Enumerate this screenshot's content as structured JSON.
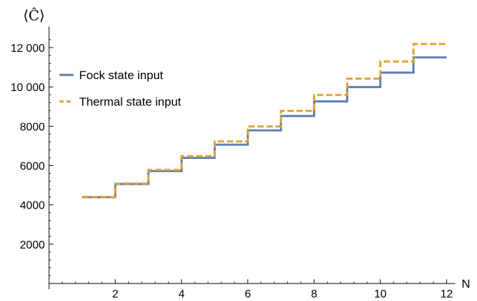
{
  "chart_data": {
    "type": "line",
    "step": true,
    "xlabel": "N",
    "ylabel": "⟨Ĉ⟩",
    "xlim": [
      0,
      12.2
    ],
    "ylim": [
      0,
      12500
    ],
    "xticks": [
      2,
      4,
      6,
      8,
      10,
      12
    ],
    "yticks": [
      2000,
      4000,
      6000,
      8000,
      10000,
      12000
    ],
    "xtick_labels": [
      "2",
      "4",
      "6",
      "8",
      "10",
      "12"
    ],
    "ytick_labels": [
      "2000",
      "4000",
      "6000",
      "8000",
      "10 000",
      "12 000"
    ],
    "legend_position": "top-left",
    "x": [
      1,
      2,
      3,
      4,
      5,
      6,
      7,
      8,
      9,
      10,
      11,
      12
    ],
    "series": [
      {
        "name": "Fock state input",
        "color": "#5b7fb2",
        "dash": "solid",
        "values": [
          4390,
          5060,
          5720,
          6390,
          7060,
          7790,
          8520,
          9260,
          9990,
          10730,
          11500,
          11500
        ]
      },
      {
        "name": "Thermal state input",
        "color": "#e0a233",
        "dash": "dashed",
        "values": [
          4400,
          5080,
          5780,
          6480,
          7230,
          7990,
          8780,
          9590,
          10420,
          11290,
          12180,
          12180
        ]
      }
    ]
  }
}
